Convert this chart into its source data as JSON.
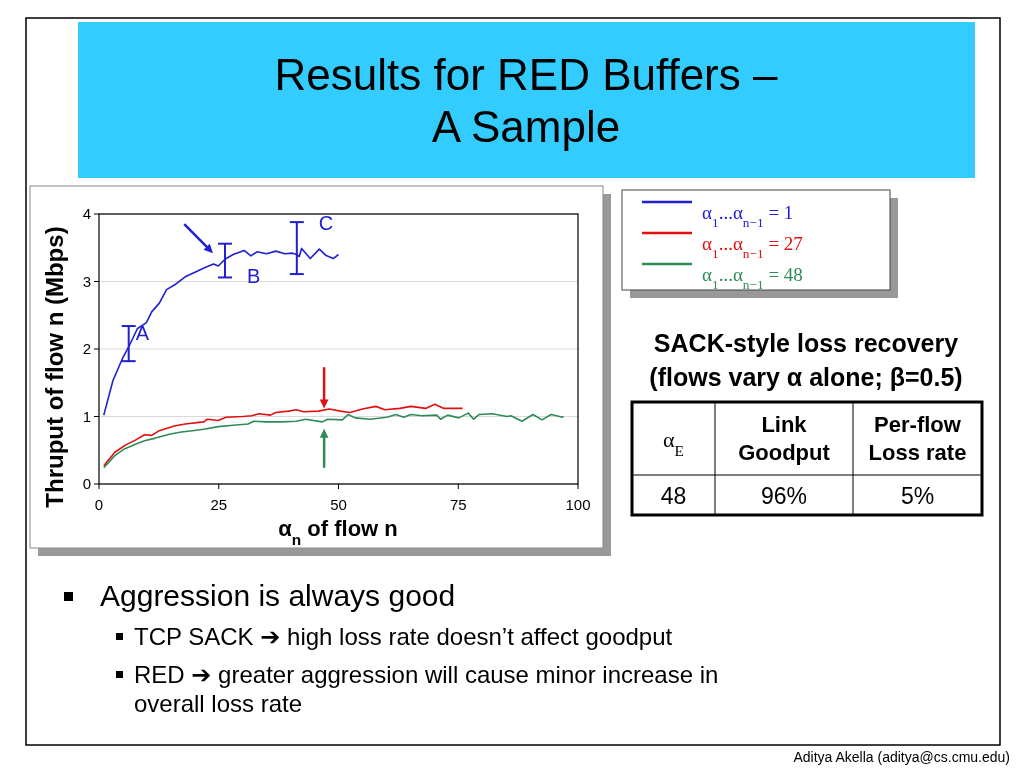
{
  "chart_data": [
    {
      "type": "line",
      "title": "Results for RED Buffers – A Sample",
      "xlabel": "α$_{n}$ of flow n",
      "ylabel": "Thruput of flow n (Mbps)",
      "xlim": [
        0,
        100
      ],
      "xticks": [
        0,
        25,
        50,
        75,
        100
      ],
      "ylim": [
        0,
        4
      ],
      "yticks": [
        0,
        1,
        2,
        3,
        4
      ],
      "grid": "y",
      "legend": "right",
      "series": [
        {
          "name": "α$_{1}$...α$_{n−1}$ = 1",
          "color": "#2020d0",
          "x": [
            1,
            2.9,
            4.9,
            6.2,
            8,
            9.9,
            11,
            12.6,
            14.1,
            16,
            18,
            20.7,
            21.9,
            23.9,
            24.9,
            26.3,
            28,
            30.3,
            31.7,
            33,
            35,
            36.9,
            38.8,
            40.4,
            41.3,
            41.8,
            42.3,
            44.1,
            46,
            47.3,
            48.9,
            50
          ],
          "values": [
            1.02,
            1.53,
            1.86,
            2.03,
            2.3,
            2.39,
            2.55,
            2.68,
            2.88,
            2.96,
            3.07,
            3.16,
            3.2,
            3.26,
            3.23,
            3.33,
            3.4,
            3.46,
            3.38,
            3.44,
            3.41,
            3.45,
            3.41,
            3.42,
            3.4,
            3.37,
            3.49,
            3.34,
            3.48,
            3.39,
            3.34,
            3.4
          ],
          "errors": [
            null,
            null,
            null,
            [
              1.82,
              2.34
            ],
            null,
            null,
            null,
            null,
            null,
            null,
            null,
            null,
            null,
            null,
            null,
            [
              3.06,
              3.56
            ],
            null,
            null,
            null,
            null,
            null,
            null,
            null,
            null,
            [
              3.11,
              3.88
            ],
            null,
            null,
            null,
            null,
            null,
            null,
            null
          ]
        },
        {
          "name": "α$_{1}$...α$_{n−1}$ = 27",
          "color": "#e01010",
          "x": [
            1,
            3.3,
            5.6,
            7.6,
            9.5,
            11,
            12.6,
            15.7,
            18,
            21.9,
            22.6,
            24.9,
            26.5,
            30,
            31.9,
            33.4,
            35.8,
            36.9,
            39.6,
            41.2,
            42.7,
            45.8,
            48.1,
            50.4,
            52.4,
            53.5,
            55,
            57.8,
            59.7,
            62.8,
            65.1,
            68.2,
            70.1,
            72,
            74.4,
            75.9
          ],
          "values": [
            0.27,
            0.47,
            0.58,
            0.65,
            0.73,
            0.72,
            0.79,
            0.86,
            0.89,
            0.92,
            0.96,
            0.94,
            0.99,
            1.0,
            1.01,
            1.04,
            1.02,
            1.06,
            1.08,
            1.1,
            1.07,
            1.08,
            1.11,
            1.08,
            1.06,
            1.08,
            1.11,
            1.15,
            1.1,
            1.12,
            1.15,
            1.12,
            1.18,
            1.12,
            1.12,
            1.12
          ]
        },
        {
          "name": "α$_{1}$...α$_{n−1}$ = 48",
          "color": "#2e8b57",
          "x": [
            1,
            3.3,
            5.3,
            7.6,
            9.5,
            11.8,
            14.9,
            17.2,
            19.5,
            21.9,
            24.9,
            28,
            31.1,
            32.3,
            35,
            38.1,
            41.2,
            43.1,
            46.6,
            47.7,
            50.8,
            52,
            53.5,
            56.6,
            60.1,
            62,
            63.6,
            65.1,
            67.4,
            70.5,
            71.3,
            72.8,
            75.1,
            77.1,
            78.2,
            79.4,
            82.1,
            85.2,
            86,
            88.3,
            90.6,
            92.5,
            94.4,
            96.8,
            97
          ],
          "values": [
            0.24,
            0.42,
            0.52,
            0.59,
            0.64,
            0.68,
            0.74,
            0.77,
            0.79,
            0.81,
            0.85,
            0.87,
            0.89,
            0.93,
            0.92,
            0.92,
            0.93,
            0.96,
            0.92,
            0.96,
            0.95,
            1.03,
            0.98,
            0.96,
            0.99,
            1.03,
            0.99,
            1.03,
            1.01,
            1.02,
            0.96,
            1.02,
            0.98,
            1.05,
            0.96,
            1.03,
            1.04,
            1.0,
            1.01,
            0.93,
            1.03,
            0.95,
            1.03,
            0.99,
            1.0
          ]
        }
      ],
      "annotations": [
        "A",
        "B",
        "C",
        "Aggression is always good",
        "TCP SACK ➔ high loss rate doesn’t affect goodput",
        "RED ➔ greater aggression will cause minor increase in overall loss rate",
        "Aditya Akella (aditya@cs.cmu.edu)"
      ]
    },
    {
      "type": "other",
      "title": "SACK-style loss recovery",
      "subtitle": "(flows vary α alone; β=0.5)",
      "categories": [
        "α$_{E}$",
        "Link Goodput",
        "Per-flow Loss rate"
      ],
      "annotations": [
        "48",
        "96%",
        "5%"
      ]
    }
  ]
}
